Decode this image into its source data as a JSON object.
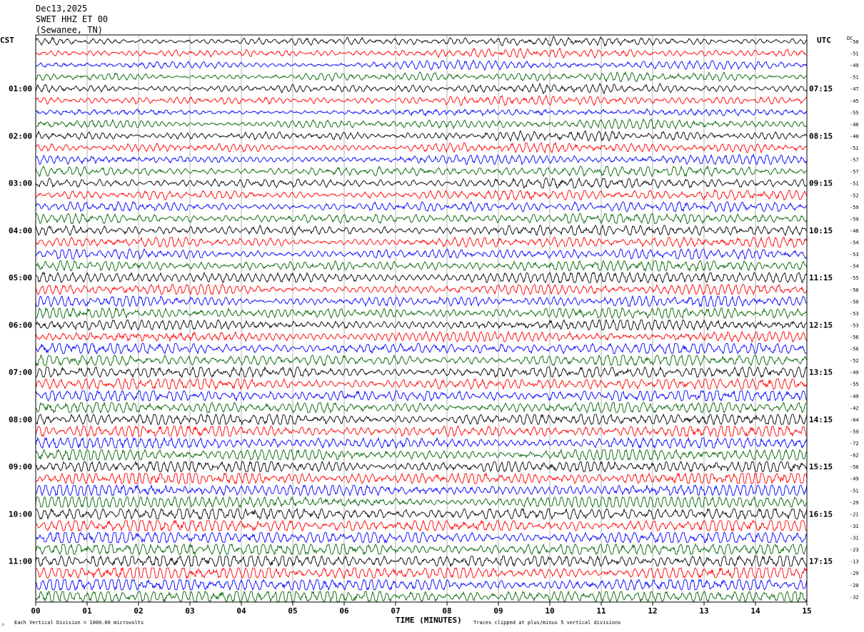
{
  "header": {
    "date": "Dec13,2025",
    "station": "SWET HHZ ET 00",
    "location": "(Sewanee, TN)"
  },
  "timezones": {
    "left": "CST",
    "right": "UTC",
    "dc": "DC"
  },
  "footer": {
    "scale_note": "Each Vertical Division = 1000.00 microvolts",
    "clip_note": "Traces clipped at plus/minus 5 vertical divisions",
    "corner_mark": "⚠"
  },
  "colors": {
    "trace_cycle": [
      "#000000",
      "#ff0000",
      "#0000ff",
      "#006400"
    ],
    "grid": "#808080"
  },
  "chart_data": {
    "type": "line",
    "xlabel": "TIME (MINUTES)",
    "xlim": [
      0,
      15
    ],
    "x_ticks": [
      "00",
      "01",
      "02",
      "03",
      "04",
      "05",
      "06",
      "07",
      "08",
      "09",
      "10",
      "11",
      "12",
      "13",
      "14",
      "15"
    ],
    "rows_per_hour": 4,
    "row_count": 48,
    "left_hour_labels": [
      "01:00",
      "02:00",
      "03:00",
      "04:00",
      "05:00",
      "06:00",
      "07:00",
      "08:00",
      "09:00",
      "10:00",
      "11:00"
    ],
    "right_hour_labels": [
      "07:15",
      "08:15",
      "09:15",
      "10:15",
      "11:15",
      "12:15",
      "13:15",
      "14:15",
      "15:15",
      "16:15",
      "17:15"
    ],
    "dc_offsets": [
      -50,
      -51,
      -49,
      -51,
      -47,
      -45,
      -55,
      -46,
      -48,
      -51,
      -57,
      -57,
      -51,
      -52,
      -59,
      -59,
      -48,
      -54,
      -53,
      -54,
      -55,
      -50,
      -50,
      -53,
      -53,
      -56,
      -56,
      -52,
      -49,
      -55,
      -49,
      -42,
      -64,
      -59,
      -72,
      -62,
      -56,
      -49,
      -51,
      -29,
      -21,
      -31,
      -31,
      -23,
      -13,
      -29,
      -20,
      -32
    ]
  }
}
